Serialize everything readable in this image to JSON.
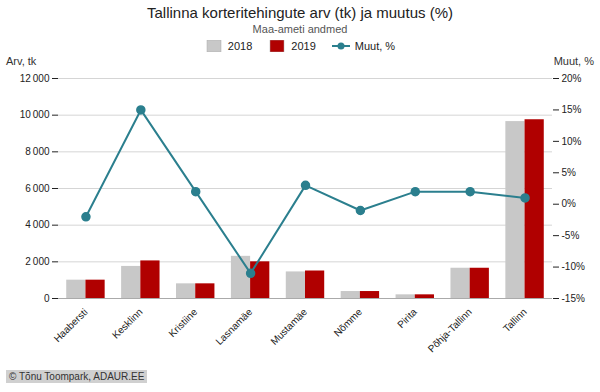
{
  "chart_data": {
    "type": "bar",
    "title": "Tallinna korteritehingute arv (tk) ja muutus (%)",
    "subtitle": "Maa-ameti andmed",
    "ylabel": "Arv, tk",
    "y2label": "Muut, %",
    "annotations": [
      "© Tõnu Toompark, ADAUR.EE"
    ],
    "categories": [
      "Haabersti",
      "Kesklinn",
      "Kristiine",
      "Lasnamäe",
      "Mustamäe",
      "Nõmme",
      "Pirita",
      "Põhja-Tallinn",
      "Tallinn"
    ],
    "series": [
      {
        "name": "2018",
        "color": "#c8c8c8",
        "values": [
          1000,
          1750,
          800,
          2300,
          1450,
          380,
          200,
          1650,
          9650
        ]
      },
      {
        "name": "2019",
        "color": "#b00000",
        "values": [
          1000,
          2050,
          800,
          2000,
          1500,
          380,
          200,
          1650,
          9750
        ]
      },
      {
        "name": "Muut, %",
        "type": "line",
        "axis": "y2",
        "color": "#2b7f8e",
        "marker": "circle",
        "line_style": "solid",
        "values": [
          -2.0,
          15.0,
          2.0,
          -11.0,
          3.0,
          -1.0,
          2.0,
          2.0,
          1.0
        ]
      }
    ],
    "ylim": [
      0,
      12000
    ],
    "yticks": [
      0,
      {
        "value": 2000,
        "label": "2 000"
      },
      {
        "value": 4000,
        "label": "4 000"
      },
      {
        "value": 6000,
        "label": "6 000"
      },
      {
        "value": 8000,
        "label": "8 000"
      },
      {
        "value": 10000,
        "label": "10 000"
      },
      {
        "value": 12000,
        "label": "12 000"
      }
    ],
    "y2lim": [
      -15,
      20
    ],
    "y2ticks": [
      {
        "value": -15,
        "label": "-15%"
      },
      {
        "value": -10,
        "label": "-10%"
      },
      {
        "value": -5,
        "label": "-5%"
      },
      {
        "value": 0,
        "label": "0%"
      },
      {
        "value": 5,
        "label": "5%"
      },
      {
        "value": 10,
        "label": "10%"
      },
      {
        "value": 15,
        "label": "15%"
      },
      {
        "value": 20,
        "label": "20%"
      }
    ],
    "grid": true,
    "legend": "top"
  }
}
